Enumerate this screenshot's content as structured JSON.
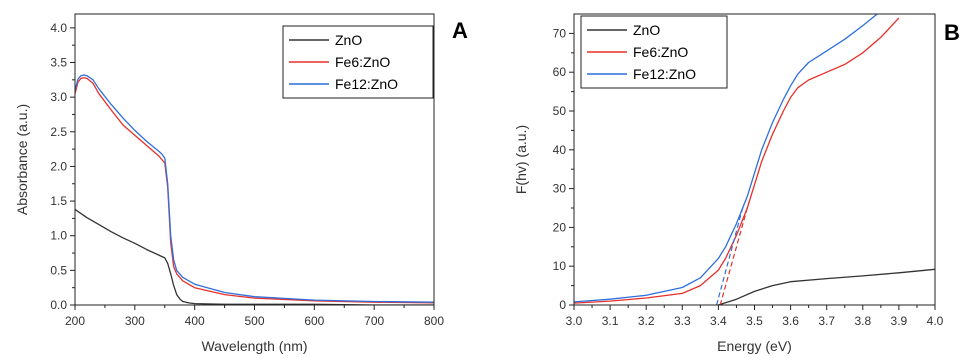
{
  "colors": {
    "ZnO": "#333333",
    "Fe6:ZnO": "#e8302a",
    "Fe12:ZnO": "#2f6fdc"
  },
  "chart_data": [
    {
      "type": "line",
      "panel_label": "A",
      "xlabel": "Wavelength (nm)",
      "ylabel": "Absorbance (a.u.)",
      "xlim": [
        200,
        800
      ],
      "ylim": [
        0,
        4.2
      ],
      "xticks": [
        "200",
        "300",
        "400",
        "500",
        "600",
        "700",
        "800"
      ],
      "yticks": [
        "0.0",
        "0.5",
        "1.0",
        "1.5",
        "2.0",
        "2.5",
        "3.0",
        "3.5",
        "4.0"
      ],
      "legend": "top-right",
      "grid": false,
      "series": [
        {
          "name": "ZnO",
          "x": [
            200,
            220,
            240,
            260,
            280,
            300,
            320,
            340,
            350,
            355,
            360,
            365,
            370,
            375,
            380,
            390,
            400,
            450,
            500,
            600,
            700,
            800
          ],
          "y": [
            1.38,
            1.26,
            1.16,
            1.06,
            0.97,
            0.89,
            0.8,
            0.72,
            0.68,
            0.6,
            0.45,
            0.28,
            0.15,
            0.09,
            0.05,
            0.03,
            0.02,
            0.01,
            0.01,
            0.01,
            0.0,
            0.0
          ]
        },
        {
          "name": "Fe6:ZnO",
          "x": [
            200,
            205,
            210,
            215,
            220,
            230,
            240,
            260,
            280,
            300,
            320,
            340,
            345,
            350,
            355,
            360,
            365,
            370,
            380,
            400,
            450,
            500,
            600,
            700,
            800
          ],
          "y": [
            3.05,
            3.22,
            3.27,
            3.28,
            3.27,
            3.2,
            3.05,
            2.82,
            2.6,
            2.45,
            2.3,
            2.15,
            2.1,
            2.05,
            1.7,
            0.9,
            0.55,
            0.45,
            0.35,
            0.25,
            0.15,
            0.1,
            0.06,
            0.04,
            0.03
          ]
        },
        {
          "name": "Fe12:ZnO",
          "x": [
            200,
            205,
            210,
            215,
            220,
            230,
            240,
            260,
            280,
            300,
            320,
            340,
            345,
            350,
            355,
            360,
            365,
            370,
            380,
            400,
            450,
            500,
            600,
            700,
            800
          ],
          "y": [
            3.1,
            3.26,
            3.31,
            3.32,
            3.31,
            3.25,
            3.12,
            2.9,
            2.7,
            2.52,
            2.36,
            2.22,
            2.18,
            2.12,
            1.75,
            1.0,
            0.65,
            0.5,
            0.4,
            0.3,
            0.18,
            0.12,
            0.07,
            0.05,
            0.04
          ]
        }
      ]
    },
    {
      "type": "line",
      "panel_label": "B",
      "xlabel": "Energy (eV)",
      "ylabel": "F(hv) (a.u.)",
      "xlim": [
        3.0,
        4.0
      ],
      "ylim": [
        0,
        75
      ],
      "xticks": [
        "3.0",
        "3.1",
        "3.2",
        "3.3",
        "3.4",
        "3.5",
        "3.6",
        "3.7",
        "3.8",
        "3.9",
        "4.0"
      ],
      "yticks": [
        "0",
        "10",
        "20",
        "30",
        "40",
        "50",
        "60",
        "70"
      ],
      "legend": "top-left",
      "grid": false,
      "series": [
        {
          "name": "ZnO",
          "x": [
            3.4,
            3.45,
            3.5,
            3.55,
            3.6,
            3.7,
            3.8,
            3.9,
            4.0
          ],
          "y": [
            0.0,
            1.5,
            3.5,
            5.0,
            6.0,
            6.8,
            7.5,
            8.3,
            9.2
          ]
        },
        {
          "name": "Fe6:ZnO",
          "x": [
            3.0,
            3.1,
            3.2,
            3.3,
            3.35,
            3.4,
            3.42,
            3.45,
            3.48,
            3.5,
            3.52,
            3.55,
            3.58,
            3.6,
            3.62,
            3.65,
            3.7,
            3.75,
            3.8,
            3.85,
            3.9
          ],
          "y": [
            0.5,
            1.0,
            1.8,
            3.0,
            5.0,
            9.0,
            12.0,
            18.0,
            25.0,
            31.0,
            37.0,
            44.0,
            50.0,
            53.5,
            56.0,
            58.0,
            60.0,
            62.0,
            65.0,
            69.0,
            74.0
          ]
        },
        {
          "name": "Fe12:ZnO",
          "x": [
            3.0,
            3.1,
            3.2,
            3.3,
            3.35,
            3.4,
            3.42,
            3.45,
            3.48,
            3.5,
            3.52,
            3.55,
            3.58,
            3.6,
            3.62,
            3.65,
            3.7,
            3.75,
            3.8,
            3.84
          ],
          "y": [
            0.8,
            1.5,
            2.5,
            4.5,
            7.0,
            12.0,
            15.0,
            21.0,
            28.0,
            34.0,
            40.0,
            47.0,
            53.0,
            56.5,
            59.5,
            62.5,
            65.5,
            68.5,
            72.0,
            75.0
          ]
        },
        {
          "name": "",
          "role": "tangent",
          "color_key": "Fe6:ZnO",
          "x": [
            3.405,
            3.48
          ],
          "y": [
            0.0,
            25.0
          ]
        },
        {
          "name": "",
          "role": "tangent",
          "color_key": "Fe12:ZnO",
          "x": [
            3.395,
            3.47
          ],
          "y": [
            0.0,
            26.0
          ]
        }
      ]
    }
  ]
}
